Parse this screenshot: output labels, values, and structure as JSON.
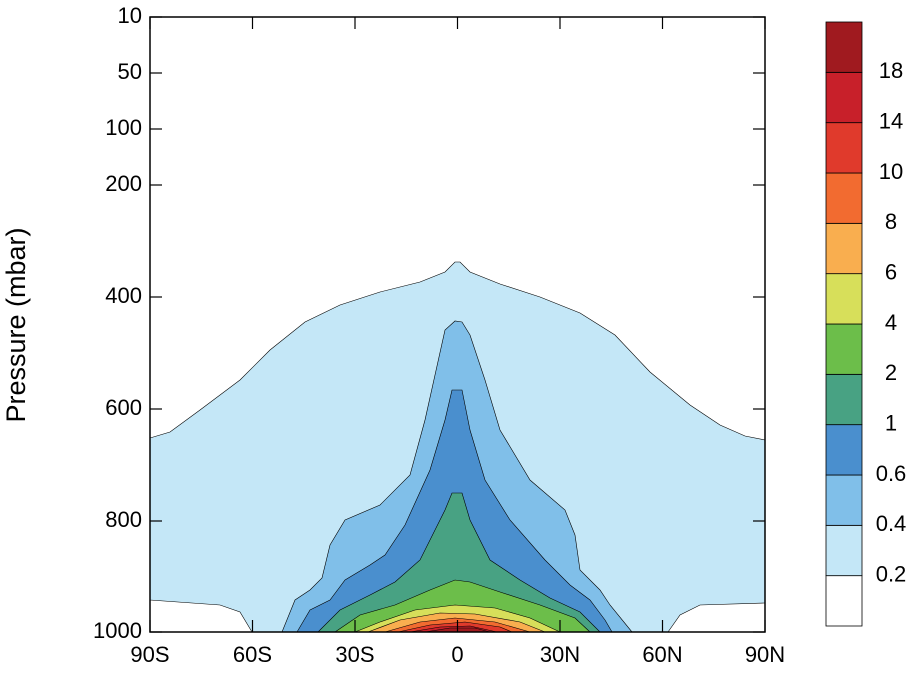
{
  "chart_data": {
    "type": "contour",
    "y_label": "Pressure (mbar)",
    "xlim": [
      -90,
      90
    ],
    "xticks": [
      {
        "value": -90,
        "label": "90S"
      },
      {
        "value": -60,
        "label": "60S"
      },
      {
        "value": -30,
        "label": "30S"
      },
      0,
      {
        "value": 30,
        "label": "30N"
      },
      {
        "value": 60,
        "label": "60N"
      },
      {
        "value": 90,
        "label": "90N"
      }
    ],
    "ylim": [
      1000,
      10
    ],
    "yticks": [
      10,
      50,
      100,
      200,
      400,
      600,
      800,
      1000
    ],
    "levels": [
      0.2,
      0.4,
      0.6,
      1,
      2,
      4,
      6,
      8,
      10,
      14,
      18
    ],
    "colors": [
      "#ffffff",
      "#c4e7f7",
      "#80bfe9",
      "#4a8fce",
      "#48a283",
      "#6cbe4a",
      "#d7df5a",
      "#f9ae4f",
      "#f26b30",
      "#e03a2c",
      "#c8202a",
      "#a01a1f"
    ]
  }
}
